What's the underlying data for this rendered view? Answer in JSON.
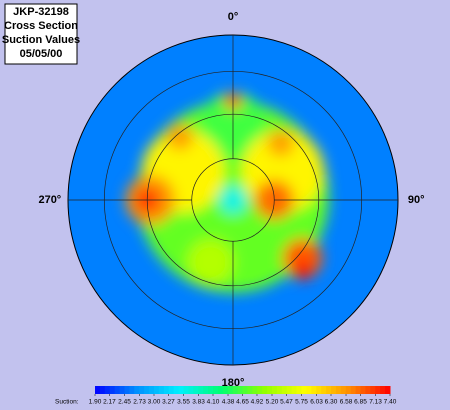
{
  "chart_data": {
    "type": "polar-field",
    "title_lines": [
      "JKP-32198",
      "Cross Section",
      "Suction Values",
      "05/05/00"
    ],
    "angle_ticks": [
      {
        "value": 0,
        "label": "0°"
      },
      {
        "value": 90,
        "label": "90°"
      },
      {
        "value": 180,
        "label": "180°"
      },
      {
        "value": 270,
        "label": "270°"
      }
    ],
    "rlim": [
      0,
      1
    ],
    "rticks": [
      0.25,
      0.52,
      0.78
    ],
    "colorbar_label": "Suction:",
    "clim": [
      1.9,
      7.4
    ],
    "colorscale": [
      "#0000ff",
      "#0090ff",
      "#00f0ff",
      "#00ff70",
      "#90ff00",
      "#ffff00",
      "#ff9000",
      "#ff0000"
    ],
    "cticks": [
      {
        "value": 1.9,
        "label": "1.90"
      },
      2.17,
      2.45,
      2.73,
      {
        "value": 3,
        "label": "3.00"
      },
      3.27,
      3.55,
      3.83,
      {
        "value": 4.1,
        "label": "4.10"
      },
      4.38,
      4.65,
      4.92,
      {
        "value": 5.2,
        "label": "5.20"
      },
      5.47,
      5.75,
      6.03,
      {
        "value": 6.3,
        "label": "6.30"
      },
      6.58,
      6.85,
      7.13,
      {
        "value": 7.4,
        "label": "7.40"
      }
    ],
    "base_value": 2.6,
    "hotspots": [
      {
        "angle": 0,
        "r": 0.02,
        "value": 4.8,
        "size": 0.58
      },
      {
        "angle": 0,
        "r": 0.45,
        "value": 4.6,
        "size": 0.2
      },
      {
        "angle": 200,
        "r": 0.4,
        "value": 5.3,
        "size": 0.14
      },
      {
        "angle": 300,
        "r": 0.35,
        "value": 5.9,
        "size": 0.25
      },
      {
        "angle": 60,
        "r": 0.35,
        "value": 5.9,
        "size": 0.25
      },
      {
        "angle": 270,
        "r": 0.5,
        "value": 6.6,
        "size": 0.15
      },
      {
        "angle": 270,
        "r": 0.52,
        "value": 7.2,
        "size": 0.07
      },
      {
        "angle": 90,
        "r": 0.25,
        "value": 6.8,
        "size": 0.12
      },
      {
        "angle": 130,
        "r": 0.55,
        "value": 6.9,
        "size": 0.12
      },
      {
        "angle": 135,
        "r": 0.6,
        "value": 7.3,
        "size": 0.06
      },
      {
        "angle": 320,
        "r": 0.5,
        "value": 6.5,
        "size": 0.08
      },
      {
        "angle": 40,
        "r": 0.45,
        "value": 6.5,
        "size": 0.08
      },
      {
        "angle": 0,
        "r": 0.6,
        "value": 7.3,
        "size": 0.05
      },
      {
        "angle": 0,
        "r": 0,
        "value": 3.6,
        "size": 0.08
      }
    ]
  }
}
